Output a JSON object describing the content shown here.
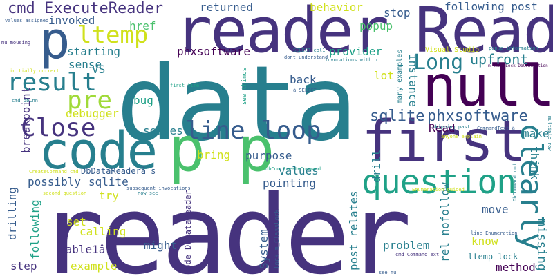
{
  "words": [
    {
      "id": "w-reader-big",
      "text": "reader",
      "color": "#46337e"
    },
    {
      "id": "w-data",
      "text": "data",
      "color": "#277f8e"
    },
    {
      "id": "w-reader-top",
      "text": "reader",
      "color": "#46337e"
    },
    {
      "id": "w-Read",
      "text": "Read",
      "color": "#46337e"
    },
    {
      "id": "w-null",
      "text": "null",
      "color": "#440154"
    },
    {
      "id": "w-code",
      "text": "code",
      "color": "#277f8e"
    },
    {
      "id": "w-first",
      "text": "first",
      "color": "#46337e"
    },
    {
      "id": "w-p-p",
      "text": "p p",
      "color": "#4ac16d"
    },
    {
      "id": "w-question",
      "text": "question",
      "color": "#1fa187"
    },
    {
      "id": "w-clearly",
      "text": "clearly",
      "color": "#277f8e"
    },
    {
      "id": "w-p-big",
      "text": "p",
      "color": "#365c8d"
    },
    {
      "id": "w-ltemp",
      "text": "ltemp",
      "color": "#d0e11c"
    },
    {
      "id": "w-result",
      "text": "result",
      "color": "#277f8e"
    },
    {
      "id": "w-pre",
      "text": "pre",
      "color": "#a0da39"
    },
    {
      "id": "w-Close",
      "text": "Close",
      "color": "#46337e"
    },
    {
      "id": "w-line",
      "text": "line",
      "color": "#365c8d"
    },
    {
      "id": "w-loop",
      "text": "loop",
      "color": "#365c8d"
    },
    {
      "id": "w-Long",
      "text": "Long",
      "color": "#277f8e"
    },
    {
      "id": "w-cmd-ExecuteReader",
      "text": "cmd ExecuteReader",
      "color": "#46337e"
    },
    {
      "id": "w-phxsoftware-r",
      "text": "phxsoftware",
      "color": "#365c8d"
    },
    {
      "id": "w-sqlite-r",
      "text": "sqlite",
      "color": "#365c8d"
    },
    {
      "id": "w-upfront",
      "text": "upfront",
      "color": "#277f8e"
    },
    {
      "id": "w-returned",
      "text": "returned",
      "color": "#365c8d"
    },
    {
      "id": "w-behavior",
      "text": "behavior",
      "color": "#d0e11c"
    },
    {
      "id": "w-following-post",
      "text": "following post",
      "color": "#365c8d"
    },
    {
      "id": "w-stop",
      "text": "stop",
      "color": "#365c8d"
    },
    {
      "id": "w-popup",
      "text": "popup",
      "color": "#4ac16d"
    },
    {
      "id": "w-invoked",
      "text": "invoked",
      "color": "#365c8d"
    },
    {
      "id": "w-href",
      "text": "href",
      "color": "#4ac16d"
    },
    {
      "id": "w-starting",
      "text": "starting",
      "color": "#277f8e"
    },
    {
      "id": "w-phxsoftware-m",
      "text": "phxsoftware",
      "color": "#440154"
    },
    {
      "id": "w-provider",
      "text": "provider",
      "color": "#1fa187"
    },
    {
      "id": "w-sense",
      "text": "sense",
      "color": "#277f8e"
    },
    {
      "id": "w-VS",
      "text": "VS",
      "color": "#277f8e"
    },
    {
      "id": "w-back",
      "text": "back",
      "color": "#365c8d"
    },
    {
      "id": "w-lot",
      "text": "lot",
      "color": "#d0e11c"
    },
    {
      "id": "w-instance",
      "text": "instance",
      "color": "#277f8e"
    },
    {
      "id": "w-bug",
      "text": "bug",
      "color": "#1fa187"
    },
    {
      "id": "w-debugger",
      "text": "debugger",
      "color": "#d0e11c"
    },
    {
      "id": "w-serves",
      "text": "serves",
      "color": "#277f8e"
    },
    {
      "id": "w-Read-small",
      "text": "Read",
      "color": "#440154"
    },
    {
      "id": "w-make",
      "text": "make",
      "color": "#277f8e"
    },
    {
      "id": "w-think",
      "text": "think",
      "color": "#277f8e"
    },
    {
      "id": "w-breakpoint",
      "text": "breakpoint",
      "color": "#46337e"
    },
    {
      "id": "w-bring",
      "text": "bring",
      "color": "#d0e11c"
    },
    {
      "id": "w-purpose",
      "text": "purpose",
      "color": "#365c8d"
    },
    {
      "id": "w-DbDataReader",
      "text": "DbDataReaderâ s",
      "color": "#365c8d"
    },
    {
      "id": "w-possibly",
      "text": "possibly",
      "color": "#365c8d"
    },
    {
      "id": "w-sqlite-m",
      "text": "sqlite",
      "color": "#365c8d"
    },
    {
      "id": "w-values",
      "text": "values",
      "color": "#277f8e"
    },
    {
      "id": "w-missing",
      "text": "missing",
      "color": "#277f8e"
    },
    {
      "id": "w-drill",
      "text": "drill",
      "color": "#277f8e"
    },
    {
      "id": "w-try",
      "text": "try",
      "color": "#d0e11c"
    },
    {
      "id": "w-pointing",
      "text": "pointing",
      "color": "#365c8d"
    },
    {
      "id": "w-move",
      "text": "move",
      "color": "#365c8d"
    },
    {
      "id": "w-drilling",
      "text": "drilling",
      "color": "#365c8d"
    },
    {
      "id": "w-following-l",
      "text": "following",
      "color": "#1fa187"
    },
    {
      "id": "w-set",
      "text": "set",
      "color": "#d0e11c"
    },
    {
      "id": "w-calling",
      "text": "calling",
      "color": "#d0e11c"
    },
    {
      "id": "w-table1a",
      "text": "table1â",
      "color": "#46337e"
    },
    {
      "id": "w-might",
      "text": "might",
      "color": "#365c8d"
    },
    {
      "id": "w-code-DbDataReader",
      "text": "code DbDataReader",
      "color": "#46337e"
    },
    {
      "id": "w-System",
      "text": "System",
      "color": "#365c8d"
    },
    {
      "id": "w-post-relates",
      "text": "post relates",
      "color": "#277f8e"
    },
    {
      "id": "w-problem",
      "text": "problem",
      "color": "#277f8e"
    },
    {
      "id": "w-know",
      "text": "know",
      "color": "#d0e11c"
    },
    {
      "id": "w-rel-nofollow",
      "text": "rel nofollow",
      "color": "#277f8e"
    },
    {
      "id": "w-method",
      "text": "method",
      "color": "#440154"
    },
    {
      "id": "w-example",
      "text": "example",
      "color": "#d0e11c"
    },
    {
      "id": "w-step",
      "text": "step",
      "color": "#46337e"
    },
    {
      "id": "w-ltemp-lock",
      "text": "ltemp lock",
      "color": "#277f8e"
    },
    {
      "id": "w-lock-mClassLock",
      "text": "lock m_ClassLock",
      "color": "#365c8d"
    },
    {
      "id": "w-many-examples",
      "text": "many examples",
      "color": "#277f8e"
    },
    {
      "id": "w-Visual-Studio",
      "text": "Visual Studio",
      "color": "#d0e11c"
    },
    {
      "id": "w-popup-information",
      "text": "popup information",
      "color": "#277f8e"
    },
    {
      "id": "w-mClassLock-DbConnection",
      "text": "m_ClassLock DbConnection",
      "color": "#440154"
    },
    {
      "id": "w-values-assigned",
      "text": "values assigned",
      "color": "#365c8d"
    },
    {
      "id": "w-mu-mousing",
      "text": "mu mousing",
      "color": "#46337e"
    },
    {
      "id": "w-initially-correct",
      "text": "initially correct",
      "color": "#d0e11c"
    },
    {
      "id": "w-cmd-dbCnn",
      "text": "cmd dbCnn",
      "color": "#277f8e"
    },
    {
      "id": "w-SELECT-col1",
      "text": "SELECT col1",
      "color": "#277f8e"
    },
    {
      "id": "w-dont-understand",
      "text": "dont understand",
      "color": "#365c8d"
    },
    {
      "id": "w-invocations-within",
      "text": "invocations within",
      "color": "#277f8e"
    },
    {
      "id": "w-a-SELECT",
      "text": "â SELECT",
      "color": "#365c8d"
    },
    {
      "id": "w-first-time",
      "text": "first time",
      "color": "#1fa187"
    },
    {
      "id": "w-see-things",
      "text": "see things",
      "color": "#1fa187"
    },
    {
      "id": "w-skipping-past",
      "text": "skipping past",
      "color": "#277f8e"
    },
    {
      "id": "w-CommandText-a",
      "text": "CommandText â",
      "color": "#365c8d"
    },
    {
      "id": "w-multiple-row",
      "text": "multiple row",
      "color": "#277f8e"
    },
    {
      "id": "w-anyone-explain",
      "text": "anyone explain",
      "color": "#d0e11c"
    },
    {
      "id": "w-dbCnn-CreateCommand",
      "text": "dbCnn CreateCommand",
      "color": "#1fa187"
    },
    {
      "id": "w-CreateCommand-cmd",
      "text": "CreateCommand cmd",
      "color": "#d0e11c"
    },
    {
      "id": "w-subsequent-invocations",
      "text": "subsequent invocations",
      "color": "#365c8d"
    },
    {
      "id": "w-now-see",
      "text": "now see",
      "color": "#277f8e"
    },
    {
      "id": "w-second-question",
      "text": "second question",
      "color": "#d0e11c"
    },
    {
      "id": "w-Enumeration-guided",
      "text": "Enumeration guided",
      "color": "#d0e11c"
    },
    {
      "id": "w-DbCommand-cmd",
      "text": "DbCommand cmd",
      "color": "#277f8e"
    },
    {
      "id": "w-line-Enumeration",
      "text": "line Enumeration",
      "color": "#365c8d"
    },
    {
      "id": "w-cmd-CommandText",
      "text": "cmd CommandText",
      "color": "#46337e"
    },
    {
      "id": "w-see-mu",
      "text": "see mu",
      "color": "#365c8d"
    }
  ]
}
